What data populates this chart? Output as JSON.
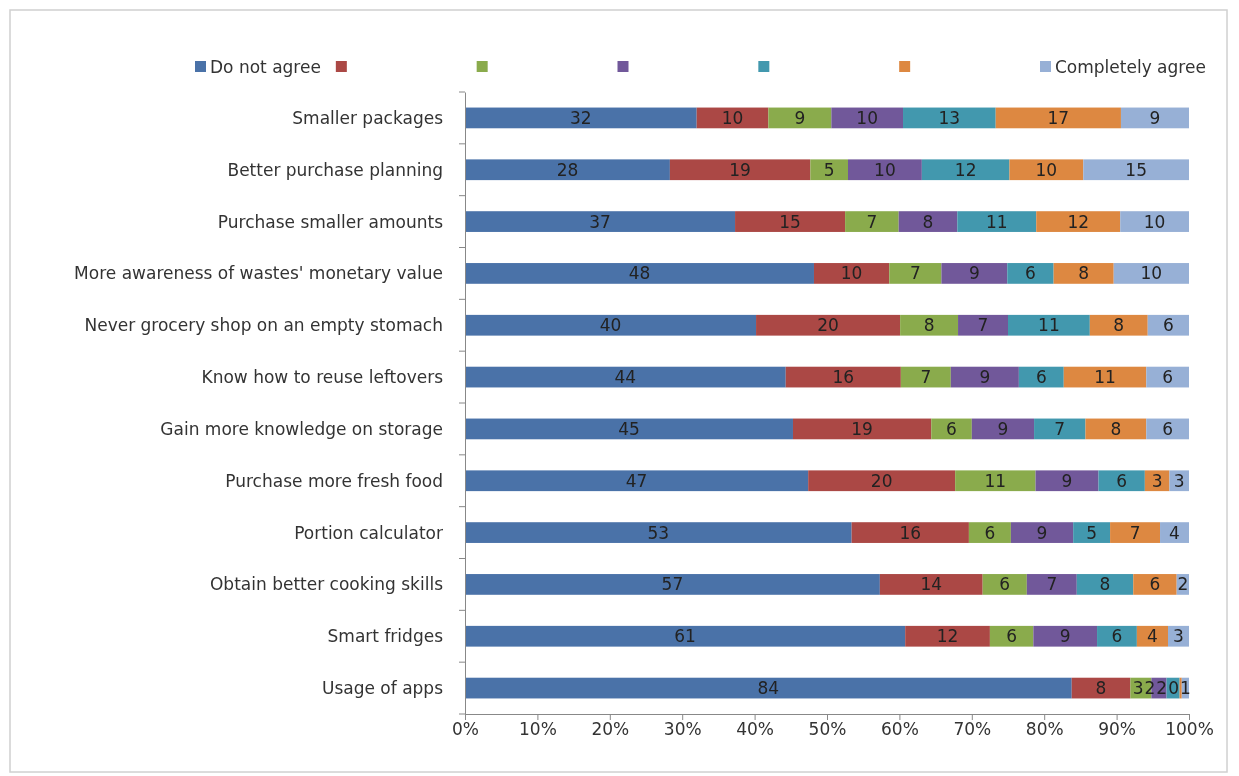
{
  "chart_data": {
    "type": "bar",
    "orientation": "horizontal",
    "stacked": true,
    "legend": "top",
    "grid": false,
    "categories": [
      "Smaller packages",
      "Better purchase planning",
      "Purchase smaller amounts",
      "More awareness of wastes' monetary value",
      "Never grocery shop on an empty stomach",
      "Know how to reuse leftovers",
      "Gain more knowledge on storage",
      "Purchase more fresh food",
      "Portion calculator",
      "Obtain better cooking skills",
      "Smart fridges",
      "Usage of apps"
    ],
    "xlim": [
      0,
      100
    ],
    "xticks": [
      {
        "value": 0,
        "label": "0%"
      },
      {
        "value": 10,
        "label": "10%"
      },
      {
        "value": 20,
        "label": "20%"
      },
      {
        "value": 30,
        "label": "30%"
      },
      {
        "value": 40,
        "label": "40%"
      },
      {
        "value": 50,
        "label": "50%"
      },
      {
        "value": 60,
        "label": "60%"
      },
      {
        "value": 70,
        "label": "70%"
      },
      {
        "value": 80,
        "label": "80%"
      },
      {
        "value": 90,
        "label": "90%"
      },
      {
        "value": 100,
        "label": "100%"
      }
    ],
    "series": [
      {
        "name": "Do not agree",
        "color": "#4a72a8",
        "values": [
          32.0,
          28.3,
          37.3,
          48.2,
          40.2,
          44.3,
          45.3,
          47.4,
          53.4,
          57.3,
          60.8,
          83.8
        ],
        "value_labels": [
          "32",
          "28",
          "37",
          "48",
          "40",
          "44",
          "45",
          "47",
          "53",
          "57",
          "61",
          "84"
        ]
      },
      {
        "color": "#ab4845",
        "values": [
          9.9,
          19.4,
          15.2,
          10.4,
          19.9,
          15.9,
          19.1,
          20.3,
          16.2,
          14.2,
          11.7,
          8.1
        ],
        "value_labels": [
          "10",
          "19",
          "15",
          "10",
          "20",
          "16",
          "19",
          "20",
          "16",
          "14",
          "12",
          "8"
        ]
      },
      {
        "color": "#8aab4c",
        "values": [
          8.7,
          5.2,
          7.4,
          7.2,
          8.0,
          6.9,
          5.6,
          11.1,
          5.8,
          6.1,
          6.0,
          2.9
        ],
        "value_labels": [
          "9",
          "5",
          "7",
          "7",
          "8",
          "7",
          "6",
          "11",
          "6",
          "6",
          "6",
          "3"
        ]
      },
      {
        "color": "#71589a",
        "values": [
          9.9,
          10.2,
          8.1,
          9.1,
          6.9,
          9.4,
          8.6,
          8.7,
          8.6,
          6.9,
          8.8,
          2.1
        ],
        "value_labels": [
          "10",
          "10",
          "8",
          "9",
          "7",
          "9",
          "9",
          "9",
          "9",
          "7",
          "9",
          "2"
        ]
      },
      {
        "color": "#4298ae",
        "values": [
          12.8,
          12.1,
          10.9,
          6.4,
          11.3,
          6.2,
          7.1,
          6.4,
          5.1,
          7.8,
          5.5,
          1.8
        ],
        "value_labels": [
          "13",
          "12",
          "11",
          "6",
          "11",
          "6",
          "7",
          "6",
          "5",
          "8",
          "6",
          "2"
        ]
      },
      {
        "color": "#dd8841",
        "values": [
          17.3,
          10.2,
          11.6,
          8.3,
          8.0,
          11.4,
          8.4,
          3.4,
          6.9,
          6.0,
          4.3,
          0.3
        ],
        "value_labels": [
          "17",
          "10",
          "12",
          "8",
          "8",
          "11",
          "8",
          "3",
          "7",
          "6",
          "4",
          "0"
        ]
      },
      {
        "name": "Completely agree",
        "color": "#97b0d6",
        "values": [
          9.4,
          14.6,
          9.5,
          10.4,
          5.7,
          5.9,
          5.9,
          2.7,
          4.0,
          1.7,
          2.9,
          1.0
        ],
        "value_labels": [
          "9",
          "15",
          "10",
          "10",
          "6",
          "6",
          "6",
          "3",
          "4",
          "2",
          "3",
          "1"
        ]
      }
    ]
  }
}
